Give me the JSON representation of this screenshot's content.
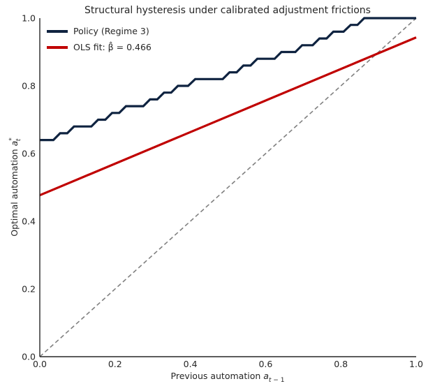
{
  "chart_data": {
    "type": "line",
    "title": "Structural hysteresis under calibrated adjustment frictions",
    "xlabel": "Previous automation a_{t-1}",
    "ylabel": "Optimal automation a*_t",
    "xlim": [
      0.0,
      1.0
    ],
    "ylim": [
      0.0,
      1.0
    ],
    "xticks": [
      "0.0",
      "0.2",
      "0.4",
      "0.6",
      "0.8",
      "1.0"
    ],
    "yticks": [
      "0.0",
      "0.2",
      "0.4",
      "0.6",
      "0.8",
      "1.0"
    ],
    "grid": false,
    "legend_position": "top-left",
    "series": [
      {
        "name": "Policy (Regime 3)",
        "kind": "step",
        "color": "#0f2340",
        "x": [
          0.0,
          0.036,
          0.054,
          0.073,
          0.091,
          0.137,
          0.155,
          0.174,
          0.192,
          0.211,
          0.229,
          0.275,
          0.293,
          0.312,
          0.33,
          0.349,
          0.367,
          0.394,
          0.413,
          0.431,
          0.449,
          0.486,
          0.504,
          0.523,
          0.541,
          0.56,
          0.578,
          0.624,
          0.642,
          0.66,
          0.679,
          0.697,
          0.725,
          0.743,
          0.762,
          0.78,
          0.807,
          0.826,
          0.844,
          0.862,
          1.0
        ],
        "y": [
          0.64,
          0.64,
          0.66,
          0.66,
          0.68,
          0.68,
          0.7,
          0.7,
          0.72,
          0.72,
          0.74,
          0.74,
          0.76,
          0.76,
          0.78,
          0.78,
          0.8,
          0.8,
          0.82,
          0.82,
          0.82,
          0.82,
          0.84,
          0.84,
          0.86,
          0.86,
          0.88,
          0.88,
          0.9,
          0.9,
          0.9,
          0.92,
          0.92,
          0.94,
          0.94,
          0.96,
          0.96,
          0.98,
          0.98,
          1.0,
          1.0
        ]
      },
      {
        "name": "OLS fit: β̂ = 0.466",
        "kind": "line",
        "color": "#c00000",
        "x": [
          0.0,
          1.0
        ],
        "y": [
          0.477,
          0.943
        ]
      },
      {
        "name": "",
        "kind": "reference",
        "style": "dashed",
        "color": "#808080",
        "x": [
          0.0,
          1.0
        ],
        "y": [
          0.0,
          1.0
        ]
      }
    ]
  }
}
